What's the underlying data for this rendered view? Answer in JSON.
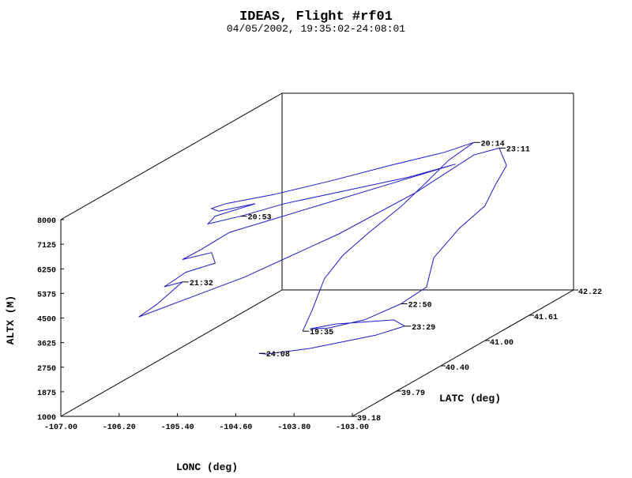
{
  "chart_data": {
    "type": "line",
    "title": "IDEAS, Flight #rf01",
    "subtitle": "04/05/2002, 19:35:02-24:08:01",
    "xlabel": "LONC (deg)",
    "ylabel": "LATC (deg)",
    "zlabel": "ALTX (M)",
    "xlim": [
      -107.0,
      -103.0
    ],
    "ylim": [
      39.18,
      42.22
    ],
    "zlim": [
      1000,
      8000
    ],
    "x_ticks": [
      "-107.00",
      "-106.20",
      "-105.40",
      "-104.60",
      "-103.80",
      "-103.00"
    ],
    "y_ticks": [
      "39.18",
      "39.79",
      "40.40",
      "41.00",
      "41.61",
      "42.22"
    ],
    "z_ticks": [
      "1000",
      "1875",
      "2750",
      "3625",
      "4500",
      "5375",
      "6250",
      "7125",
      "8000"
    ],
    "series_color": "#1a1acc",
    "time_labels": [
      "20:14",
      "23:11",
      "20:53",
      "21:32",
      "22:50",
      "23:29",
      "19:35",
      "24:08"
    ],
    "track": [
      [
        -104.85,
        40.35,
        2300,
        "19:35"
      ],
      [
        -104.82,
        40.45,
        2900,
        ""
      ],
      [
        -104.8,
        40.6,
        3800,
        ""
      ],
      [
        -104.7,
        40.75,
        4400,
        ""
      ],
      [
        -104.55,
        40.95,
        4900,
        ""
      ],
      [
        -104.4,
        41.25,
        5400,
        ""
      ],
      [
        -104.3,
        41.5,
        5900,
        ""
      ],
      [
        -104.25,
        41.75,
        6300,
        ""
      ],
      [
        -104.2,
        42.05,
        6500,
        "20:14"
      ],
      [
        -104.5,
        41.95,
        6300,
        ""
      ],
      [
        -105.0,
        41.7,
        6200,
        ""
      ],
      [
        -105.5,
        41.4,
        6100,
        ""
      ],
      [
        -106.0,
        41.1,
        6050,
        ""
      ],
      [
        -106.4,
        40.85,
        6100,
        ""
      ],
      [
        -106.55,
        40.8,
        6000,
        ""
      ],
      [
        -106.45,
        40.8,
        5900,
        ""
      ],
      [
        -106.1,
        40.95,
        5950,
        ""
      ],
      [
        -106.45,
        40.75,
        5800,
        ""
      ],
      [
        -106.5,
        40.7,
        5600,
        ""
      ],
      [
        -106.2,
        40.85,
        5650,
        "20:53"
      ],
      [
        -105.8,
        41.05,
        5800,
        ""
      ],
      [
        -105.2,
        41.3,
        5900,
        ""
      ],
      [
        -104.6,
        41.55,
        6000,
        ""
      ],
      [
        -104.2,
        41.8,
        6100,
        ""
      ],
      [
        -106.2,
        40.7,
        5300,
        ""
      ],
      [
        -106.45,
        40.55,
        4900,
        ""
      ],
      [
        -106.6,
        40.45,
        4700,
        ""
      ],
      [
        -106.3,
        40.55,
        4800,
        ""
      ],
      [
        -106.2,
        40.5,
        4500,
        ""
      ],
      [
        -106.45,
        40.35,
        4400,
        ""
      ],
      [
        -106.6,
        40.2,
        4100,
        ""
      ],
      [
        -106.4,
        40.25,
        4200,
        "21:32"
      ],
      [
        -106.55,
        40.05,
        3700,
        ""
      ],
      [
        -106.7,
        39.95,
        3400,
        ""
      ],
      [
        -105.8,
        40.5,
        4000,
        ""
      ],
      [
        -105.0,
        41.0,
        4800,
        ""
      ],
      [
        -104.4,
        41.45,
        5600,
        ""
      ],
      [
        -104.1,
        41.95,
        6200,
        ""
      ],
      [
        -103.85,
        42.05,
        6300,
        "23:11"
      ],
      [
        -103.6,
        41.9,
        5900,
        ""
      ],
      [
        -103.5,
        41.65,
        5600,
        ""
      ],
      [
        -103.4,
        41.4,
        5200,
        ""
      ],
      [
        -103.55,
        41.2,
        4700,
        ""
      ],
      [
        -103.6,
        40.9,
        4100,
        ""
      ],
      [
        -103.4,
        40.6,
        3500,
        ""
      ],
      [
        -103.55,
        40.4,
        3200,
        "22:50"
      ],
      [
        -103.8,
        40.15,
        3000,
        ""
      ],
      [
        -104.1,
        39.95,
        3000,
        ""
      ],
      [
        -104.3,
        39.9,
        3050,
        ""
      ],
      [
        -104.1,
        40.05,
        3000,
        ""
      ],
      [
        -103.5,
        40.25,
        2850,
        ""
      ],
      [
        -103.3,
        40.2,
        2700,
        "23:29"
      ],
      [
        -103.55,
        40.05,
        2600,
        ""
      ],
      [
        -104.2,
        39.8,
        2500,
        ""
      ],
      [
        -104.7,
        39.7,
        2450,
        ""
      ],
      [
        -104.85,
        39.75,
        2400,
        "24:08"
      ]
    ]
  }
}
